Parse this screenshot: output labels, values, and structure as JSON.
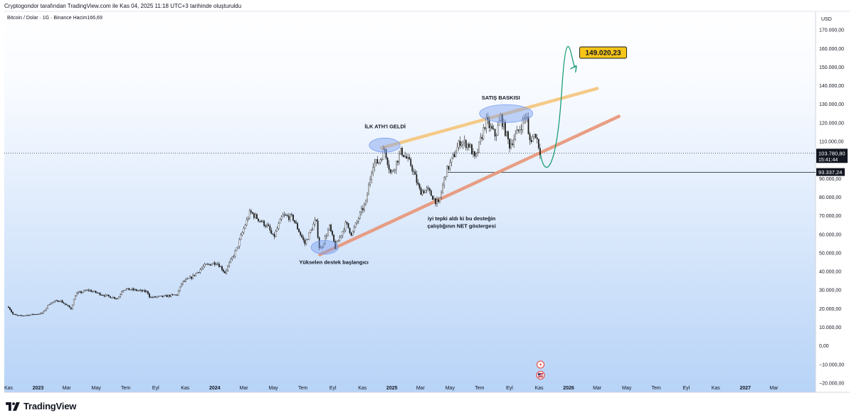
{
  "header": {
    "note": "Cryptogondor tarafından TradingView.com ile Kas 04, 2025 11:18 UTC+3 tarihinde oluşturuldu",
    "symbol": "Bitcoin / Dolar · 1G · Binance  Hacim166,69",
    "currency": "USD"
  },
  "brand": {
    "name": "TradingView",
    "icon": "tradingview-logo-icon"
  },
  "colors": {
    "candle": "#1a1a1a",
    "upper_trendline": "#f5c77e",
    "lower_trendline": "#e8977a",
    "projection_arrow": "#1b9e77",
    "highlight": "#7a9ff0",
    "target_label_bg": "#f5c518",
    "price_label_bg": "#131722",
    "background_top": "#ffffff",
    "background_bottom": "#b7d3f7"
  },
  "chart_data": {
    "type": "candlestick",
    "y_axis": {
      "range": [
        -25000,
        180000
      ],
      "ticks": [
        -20000,
        -10000,
        0,
        10000,
        20000,
        30000,
        40000,
        50000,
        60000,
        70000,
        80000,
        90000,
        110000,
        120000,
        130000,
        140000,
        150000,
        160000,
        170000
      ],
      "tick_labels": [
        "−20.000,00",
        "−10.000,00",
        "0,00",
        "10.000,00",
        "20.000,00",
        "30.000,00",
        "40.000,00",
        "50.000,00",
        "60.000,00",
        "70.000,00",
        "80.000,00",
        "90.000,00",
        "110.000,00",
        "120.000,00",
        "130.000,00",
        "140.000,00",
        "150.000,00",
        "160.000,00",
        "170.000,00"
      ]
    },
    "x_axis": {
      "range": [
        "2022-11-01",
        "2027-04-15"
      ],
      "ticks": [
        {
          "date": "2022-11-01",
          "label": "Kas"
        },
        {
          "date": "2023-01-01",
          "label": "2023"
        },
        {
          "date": "2023-03-01",
          "label": "Mar"
        },
        {
          "date": "2023-05-01",
          "label": "May"
        },
        {
          "date": "2023-07-01",
          "label": "Tem"
        },
        {
          "date": "2023-09-01",
          "label": "Eyl"
        },
        {
          "date": "2023-11-01",
          "label": "Kas"
        },
        {
          "date": "2024-01-01",
          "label": "2024"
        },
        {
          "date": "2024-03-01",
          "label": "Mar"
        },
        {
          "date": "2024-05-01",
          "label": "May"
        },
        {
          "date": "2024-07-01",
          "label": "Tem"
        },
        {
          "date": "2024-09-01",
          "label": "Eyl"
        },
        {
          "date": "2024-11-01",
          "label": "Kas"
        },
        {
          "date": "2025-01-01",
          "label": "2025"
        },
        {
          "date": "2025-03-01",
          "label": "Mar"
        },
        {
          "date": "2025-05-01",
          "label": "May"
        },
        {
          "date": "2025-07-01",
          "label": "Tem"
        },
        {
          "date": "2025-09-01",
          "label": "Eyl"
        },
        {
          "date": "2025-11-01",
          "label": "Kas"
        },
        {
          "date": "2026-01-01",
          "label": "2026"
        },
        {
          "date": "2026-03-01",
          "label": "Mar"
        },
        {
          "date": "2026-05-01",
          "label": "May"
        },
        {
          "date": "2026-07-01",
          "label": "Tem"
        },
        {
          "date": "2026-09-01",
          "label": "Eyl"
        },
        {
          "date": "2026-11-01",
          "label": "Kas"
        },
        {
          "date": "2027-01-01",
          "label": "2027"
        },
        {
          "date": "2027-03-01",
          "label": "Mar"
        }
      ]
    },
    "price_path": [
      [
        "2022-11-01",
        21000
      ],
      [
        "2022-11-10",
        17000
      ],
      [
        "2022-11-22",
        16000
      ],
      [
        "2022-12-20",
        16800
      ],
      [
        "2023-01-10",
        17500
      ],
      [
        "2023-01-25",
        23000
      ],
      [
        "2023-02-15",
        24500
      ],
      [
        "2023-03-10",
        20000
      ],
      [
        "2023-03-20",
        28000
      ],
      [
        "2023-04-15",
        30000
      ],
      [
        "2023-05-20",
        27000
      ],
      [
        "2023-06-15",
        25500
      ],
      [
        "2023-06-25",
        30500
      ],
      [
        "2023-07-15",
        30200
      ],
      [
        "2023-08-15",
        29000
      ],
      [
        "2023-08-20",
        26000
      ],
      [
        "2023-09-15",
        26500
      ],
      [
        "2023-10-15",
        27500
      ],
      [
        "2023-10-25",
        34000
      ],
      [
        "2023-11-15",
        37000
      ],
      [
        "2023-12-10",
        43000
      ],
      [
        "2024-01-05",
        45000
      ],
      [
        "2024-01-22",
        39500
      ],
      [
        "2024-02-15",
        52000
      ],
      [
        "2024-03-05",
        66000
      ],
      [
        "2024-03-14",
        72000
      ],
      [
        "2024-04-01",
        68000
      ],
      [
        "2024-04-20",
        64000
      ],
      [
        "2024-05-01",
        58000
      ],
      [
        "2024-05-20",
        70000
      ],
      [
        "2024-06-10",
        69000
      ],
      [
        "2024-07-05",
        55000
      ],
      [
        "2024-07-28",
        68000
      ],
      [
        "2024-08-05",
        51000
      ],
      [
        "2024-08-25",
        64000
      ],
      [
        "2024-09-06",
        53000
      ],
      [
        "2024-09-28",
        66000
      ],
      [
        "2024-10-10",
        60000
      ],
      [
        "2024-10-29",
        72000
      ],
      [
        "2024-11-08",
        77000
      ],
      [
        "2024-11-22",
        98000
      ],
      [
        "2024-12-05",
        99000
      ],
      [
        "2024-12-17",
        106000
      ],
      [
        "2024-12-30",
        92000
      ],
      [
        "2025-01-20",
        105000
      ],
      [
        "2025-02-10",
        97000
      ],
      [
        "2025-02-28",
        83000
      ],
      [
        "2025-03-15",
        84000
      ],
      [
        "2025-04-07",
        76000
      ],
      [
        "2025-04-22",
        93000
      ],
      [
        "2025-05-10",
        103000
      ],
      [
        "2025-05-22",
        110000
      ],
      [
        "2025-06-10",
        108000
      ],
      [
        "2025-06-22",
        100000
      ],
      [
        "2025-07-14",
        121000
      ],
      [
        "2025-08-03",
        113000
      ],
      [
        "2025-08-14",
        123000
      ],
      [
        "2025-09-01",
        108000
      ],
      [
        "2025-09-20",
        116000
      ],
      [
        "2025-10-06",
        125000
      ],
      [
        "2025-10-11",
        110000
      ],
      [
        "2025-10-25",
        114000
      ],
      [
        "2025-11-04",
        103780
      ]
    ],
    "current_price": {
      "value": 103780.8,
      "label": "103.780,80",
      "timer": "15:41:44"
    },
    "horizontal_line": {
      "value": 93337.24,
      "label": "93.337,24",
      "from": "2025-04-25"
    },
    "trendlines": [
      {
        "name": "upper",
        "start": [
          "2024-12-10",
          106500
        ],
        "end": [
          "2026-03-01",
          138500
        ]
      },
      {
        "name": "lower",
        "start": [
          "2024-08-05",
          49000
        ],
        "end": [
          "2026-04-15",
          123500
        ]
      }
    ],
    "highlights": [
      {
        "center": [
          "2024-12-17",
          108000
        ],
        "rx_days": 32,
        "ry_value": 3800
      },
      {
        "center": [
          "2025-08-25",
          125000
        ],
        "rx_days": 55,
        "ry_value": 4800
      },
      {
        "center": [
          "2024-08-15",
          53000
        ],
        "rx_days": 28,
        "ry_value": 3700
      }
    ],
    "projection": {
      "points": [
        [
          "2025-11-04",
          103000
        ],
        [
          "2025-11-22",
          95000
        ],
        [
          "2025-12-18",
          138000
        ],
        [
          "2026-01-15",
          150000
        ]
      ],
      "target": {
        "value": 149020.23,
        "label": "149.020,23"
      }
    },
    "annotations": [
      {
        "text": "İLK ATH'I GELDİ",
        "at": [
          "2024-12-18",
          117000
        ]
      },
      {
        "text": "SATIŞ BASKISI",
        "at": [
          "2025-08-14",
          132500
        ]
      },
      {
        "text": "Yükselen destek başlangıcı",
        "at": [
          "2024-09-03",
          44000
        ]
      },
      {
        "text": "iyi tepki aldı ki bu desteğin",
        "at": [
          "2025-05-25",
          67500
        ]
      },
      {
        "text": "çalıştığının NET göstergesi",
        "at": [
          "2025-05-25",
          63500
        ]
      }
    ],
    "event_icons": [
      "flash-event-icon",
      "us-flag-event-icon"
    ],
    "grid": false,
    "legend": "none"
  }
}
